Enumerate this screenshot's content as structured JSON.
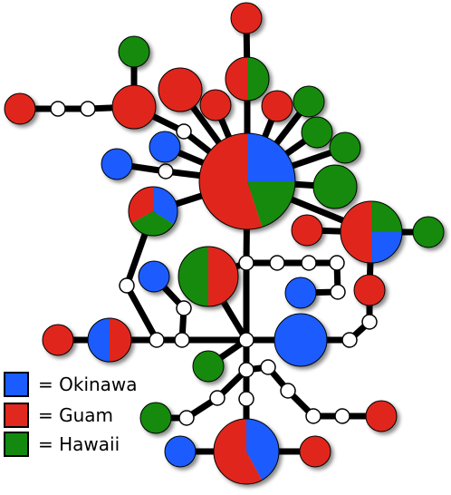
{
  "colors": {
    "okinawa": "#1a5cff",
    "guam": "#e0281e",
    "hawaii": "#138a0f",
    "median": "#ffffff",
    "edge": "#000000"
  },
  "legend": [
    {
      "key": "okinawa",
      "label": "= Okinawa"
    },
    {
      "key": "guam",
      "label": "= Guam"
    },
    {
      "key": "hawaii",
      "label": "= Hawaii"
    }
  ],
  "network": {
    "haplotypes": [
      {
        "id": "hub",
        "composition": {
          "okinawa": 0.25,
          "guam": 0.55,
          "hawaii": 0.2
        }
      },
      {
        "id": "h-top-guam",
        "composition": {
          "guam": 1
        }
      },
      {
        "id": "h-top-mixed",
        "composition": {
          "guam": 0.5,
          "hawaii": 0.5
        }
      },
      {
        "id": "h-green-a",
        "composition": {
          "hawaii": 1
        }
      },
      {
        "id": "h-guam-b",
        "composition": {
          "guam": 1
        }
      },
      {
        "id": "h-guam-c",
        "composition": {
          "guam": 1
        }
      },
      {
        "id": "h-guam-d",
        "composition": {
          "guam": 1
        }
      },
      {
        "id": "h-far-left-guam",
        "composition": {
          "guam": 1
        }
      },
      {
        "id": "h-blue-a",
        "composition": {
          "okinawa": 1
        }
      },
      {
        "id": "h-blue-b",
        "composition": {
          "okinawa": 1
        }
      },
      {
        "id": "h-guam-e",
        "composition": {
          "guam": 1
        }
      },
      {
        "id": "h-green-b",
        "composition": {
          "hawaii": 1
        }
      },
      {
        "id": "h-green-c",
        "composition": {
          "hawaii": 1
        }
      },
      {
        "id": "h-green-d",
        "composition": {
          "hawaii": 1
        }
      },
      {
        "id": "h-green-e",
        "composition": {
          "hawaii": 1
        }
      },
      {
        "id": "h-left-tri",
        "composition": {
          "okinawa": 0.34,
          "guam": 0.33,
          "hawaii": 0.33
        }
      },
      {
        "id": "h-right-tri",
        "composition": {
          "okinawa": 0.25,
          "guam": 0.5,
          "hawaii": 0.25
        }
      },
      {
        "id": "h-right-green",
        "composition": {
          "hawaii": 1
        }
      },
      {
        "id": "h-right-guam-small",
        "composition": {
          "guam": 1
        }
      },
      {
        "id": "h-center-mixed",
        "composition": {
          "guam": 0.5,
          "hawaii": 0.5
        }
      },
      {
        "id": "h-blue-c",
        "composition": {
          "okinawa": 1
        }
      },
      {
        "id": "h-blue-d",
        "composition": {
          "okinawa": 1
        }
      },
      {
        "id": "h-right-guam-mid",
        "composition": {
          "guam": 1
        }
      },
      {
        "id": "h-left-mixed",
        "composition": {
          "okinawa": 0.5,
          "guam": 0.5
        }
      },
      {
        "id": "h-left-guam",
        "composition": {
          "guam": 1
        }
      },
      {
        "id": "h-big-blue",
        "composition": {
          "okinawa": 1
        }
      },
      {
        "id": "h-green-f",
        "composition": {
          "hawaii": 1
        }
      },
      {
        "id": "h-green-g",
        "composition": {
          "hawaii": 1
        }
      },
      {
        "id": "h-bottom-guam-right",
        "composition": {
          "guam": 1
        }
      },
      {
        "id": "h-bottom-mixed",
        "composition": {
          "okinawa": 0.42,
          "guam": 0.58
        }
      },
      {
        "id": "h-blue-e",
        "composition": {
          "okinawa": 1
        }
      },
      {
        "id": "h-guam-f",
        "composition": {
          "guam": 1
        }
      }
    ]
  }
}
